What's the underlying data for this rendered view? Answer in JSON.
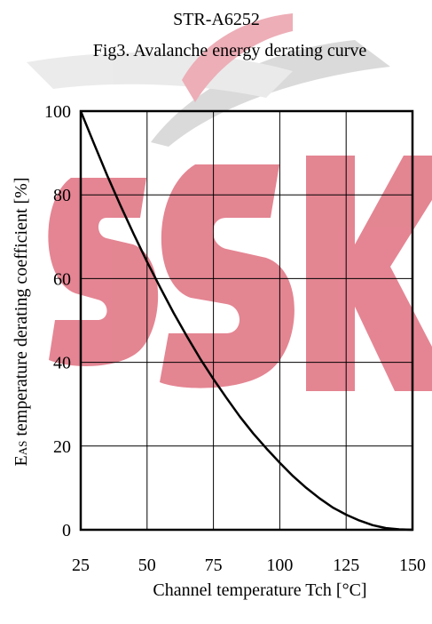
{
  "chart_data": {
    "type": "line",
    "title": "STR-A6252",
    "subtitle": "Fig3.  Avalanche energy derating curve",
    "xlabel": "Channel temperature Tch [°C]",
    "ylabel_prefix": "E",
    "ylabel_subscript": "AS",
    "ylabel_suffix": " temperature derating coefficient  [%]",
    "xlim": [
      25,
      150
    ],
    "ylim": [
      0,
      100
    ],
    "x_ticks": [
      25,
      50,
      75,
      100,
      125,
      150
    ],
    "y_ticks": [
      0,
      20,
      40,
      60,
      80,
      100
    ],
    "grid": true,
    "series": [
      {
        "x": [
          25,
          30,
          35,
          40,
          45,
          50,
          55,
          60,
          65,
          70,
          75,
          80,
          85,
          90,
          95,
          100,
          105,
          110,
          115,
          120,
          125,
          130,
          135,
          140,
          145,
          150
        ],
        "y": [
          100,
          92.2,
          84.6,
          77.4,
          70.6,
          64.0,
          57.8,
          51.8,
          46.2,
          40.9,
          36.0,
          31.4,
          27.0,
          23.0,
          19.4,
          16.0,
          12.8,
          10.0,
          7.5,
          5.3,
          3.6,
          2.2,
          1.1,
          0.4,
          0.1,
          0
        ]
      }
    ],
    "colors": {
      "line": "#000000",
      "grid": "#000000",
      "watermark_red": "#e07080",
      "watermark_gray": "#cfcfcf"
    }
  }
}
